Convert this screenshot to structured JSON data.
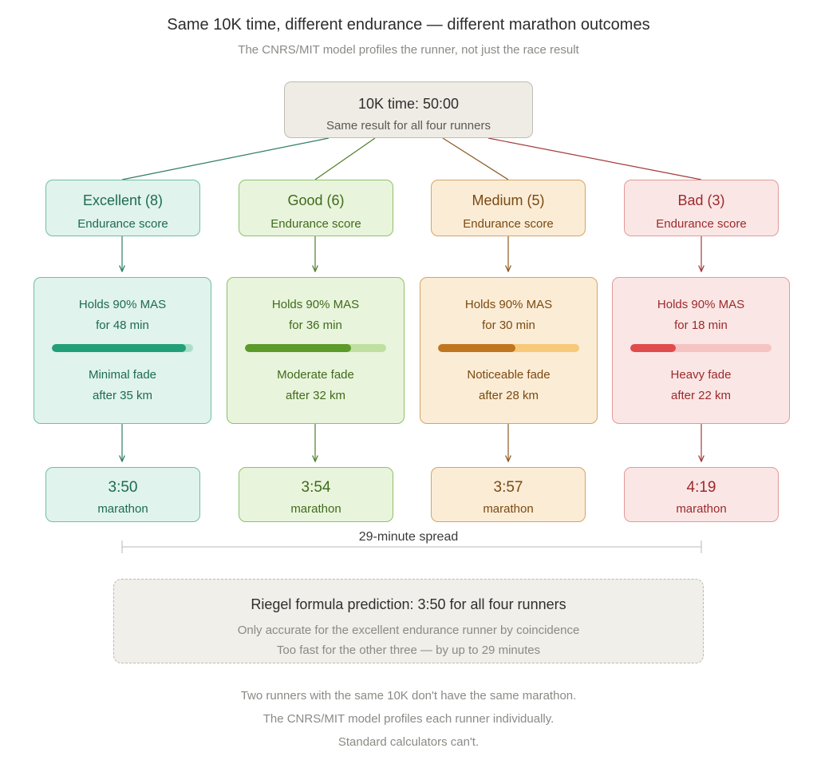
{
  "title": "Same 10K time, different endurance — different marathon outcomes",
  "subtitle": "The CNRS/MIT model profiles the runner, not just the race result",
  "root": {
    "line1": "10K time: 50:00",
    "line2": "Same result for all four runners"
  },
  "runners": [
    {
      "score_label": "Excellent (8)",
      "score_sub": "Endurance score",
      "hold_line1": "Holds 90% MAS",
      "hold_line2": "for 48 min",
      "hold_fraction": 0.95,
      "fade_line1": "Minimal fade",
      "fade_line2": "after 35 km",
      "time": "3:50",
      "time_label": "marathon",
      "colors": {
        "bg": "#e0f3ec",
        "border": "#6fbfa3",
        "text": "#1e6b52",
        "bar": "#21a077",
        "track": "#a9dfca",
        "line": "#2e7d62"
      }
    },
    {
      "score_label": "Good (6)",
      "score_sub": "Endurance score",
      "hold_line1": "Holds 90% MAS",
      "hold_line2": "for 36 min",
      "hold_fraction": 0.75,
      "fade_line1": "Moderate fade",
      "fade_line2": "after 32 km",
      "time": "3:54",
      "time_label": "marathon",
      "colors": {
        "bg": "#e9f4dc",
        "border": "#8ec06a",
        "text": "#3f6b1c",
        "bar": "#5c9a2a",
        "track": "#bfe0a0",
        "line": "#4e7f27"
      }
    },
    {
      "score_label": "Medium (5)",
      "score_sub": "Endurance score",
      "hold_line1": "Holds 90% MAS",
      "hold_line2": "for 30 min",
      "hold_fraction": 0.55,
      "fade_line1": "Noticeable fade",
      "fade_line2": "after 28 km",
      "time": "3:57",
      "time_label": "marathon",
      "colors": {
        "bg": "#fbecd6",
        "border": "#d5a467",
        "text": "#7a4a12",
        "bar": "#c0751f",
        "track": "#f7c978",
        "line": "#8a5a22"
      }
    },
    {
      "score_label": "Bad (3)",
      "score_sub": "Endurance score",
      "hold_line1": "Holds 90% MAS",
      "hold_line2": "for 18 min",
      "hold_fraction": 0.32,
      "fade_line1": "Heavy fade",
      "fade_line2": "after 22 km",
      "time": "4:19",
      "time_label": "marathon",
      "colors": {
        "bg": "#fbe6e6",
        "border": "#e19a9a",
        "text": "#9b2a2a",
        "bar": "#e04b4b",
        "track": "#f6c3c3",
        "line": "#a43a3a"
      }
    }
  ],
  "spread_label": "29-minute spread",
  "riegel": {
    "line1": "Riegel formula prediction: 3:50 for all four runners",
    "line2": "Only accurate for the excellent endurance runner by coincidence",
    "line3": "Too fast for the other three — by up to 29 minutes"
  },
  "footer": [
    "Two runners with the same 10K don't have the same marathon.",
    "The CNRS/MIT model profiles each runner individually.",
    "Standard calculators can't."
  ]
}
